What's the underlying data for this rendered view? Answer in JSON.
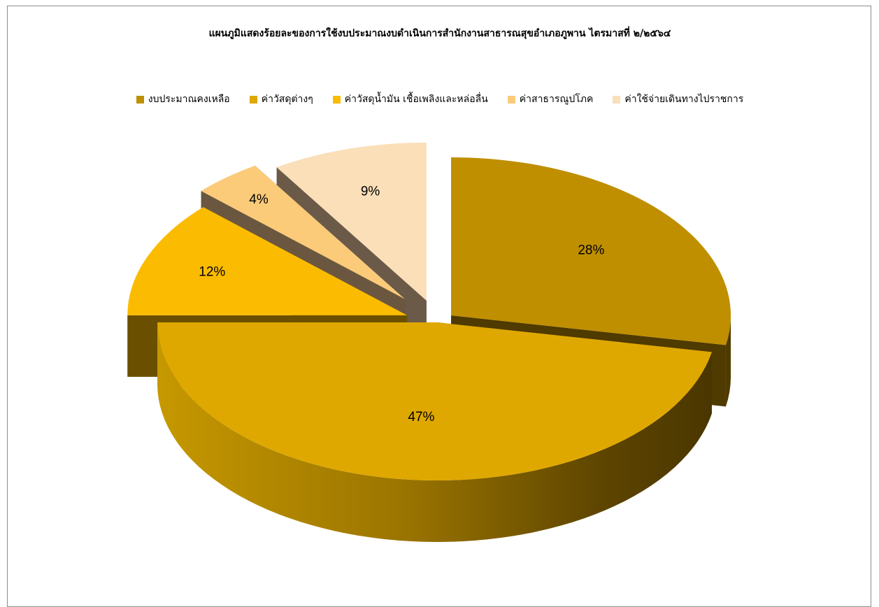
{
  "chart_data": {
    "type": "pie",
    "title": "แผนภูมิแสดงร้อยละของการใช้งบประมาณงบดำเนินการสำนักงานสาธารณสุขอำเภอภูพาน  ไตรมาสที่ ๒/๒๕๖๔",
    "legend_position": "top",
    "slices": [
      {
        "name": "งบประมาณคงเหลือ",
        "value": 28,
        "label": "28%",
        "color": "#BF8F00"
      },
      {
        "name": "ค่าวัสดุต่างๆ",
        "value": 47,
        "label": "47%",
        "color": "#DFA800"
      },
      {
        "name": "ค่าวัสดุน้ำมัน  เชื้อเพลิงและหล่อลื่น",
        "value": 12,
        "label": "12%",
        "color": "#FBBB00"
      },
      {
        "name": "ค่าสาธารณูปโภค",
        "value": 4,
        "label": "4%",
        "color": "#FBCB7A"
      },
      {
        "name": "ค่าใช้จ่ายเดินทางไปราชการ",
        "value": 9,
        "label": "9%",
        "color": "#FADFB8"
      }
    ]
  }
}
